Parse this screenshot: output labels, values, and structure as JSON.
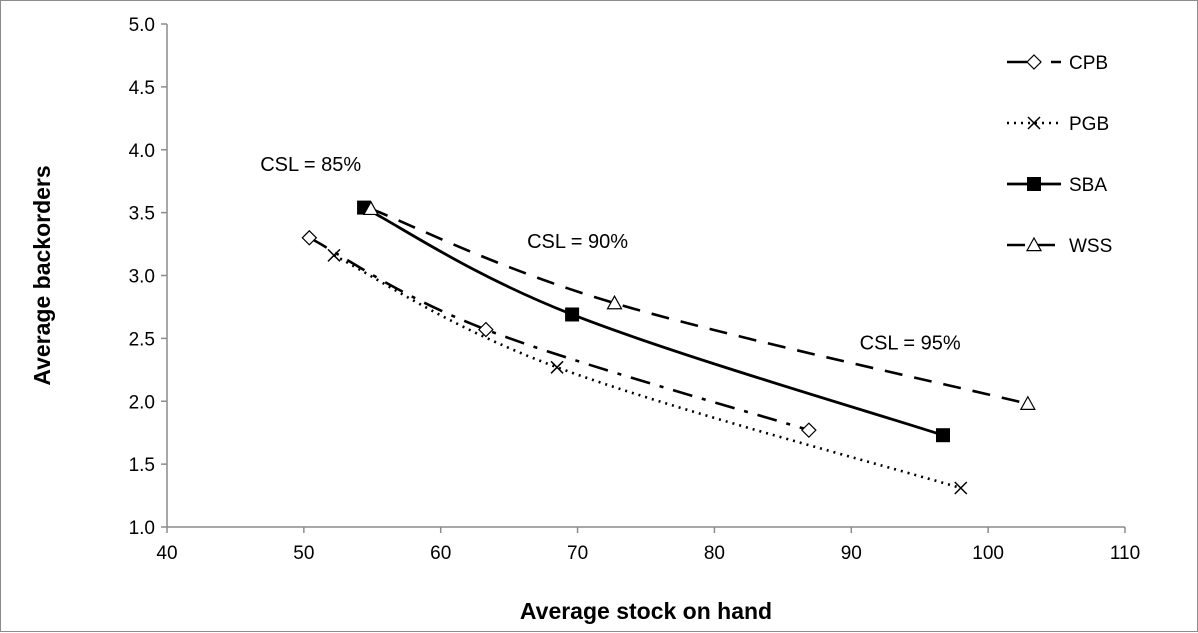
{
  "chart_data": {
    "type": "line",
    "xlabel": "Average stock on hand",
    "ylabel": "Average backorders",
    "xlim": [
      40,
      110
    ],
    "ylim": [
      1.0,
      5.0
    ],
    "x_ticks": [
      "40",
      "50",
      "60",
      "70",
      "80",
      "90",
      "100",
      "110"
    ],
    "y_ticks": [
      "1.0",
      "1.5",
      "2.0",
      "2.5",
      "3.0",
      "3.5",
      "4.0",
      "4.5",
      "5.0"
    ],
    "grid": false,
    "legend_position": "top-right",
    "series": [
      {
        "name": "CPB",
        "marker": "diamond-open",
        "line": "dash-dot",
        "points": [
          [
            50.4,
            3.3
          ],
          [
            63.3,
            2.57
          ],
          [
            86.9,
            1.77
          ]
        ]
      },
      {
        "name": "PGB",
        "marker": "x",
        "line": "dotted",
        "points": [
          [
            52.2,
            3.16
          ],
          [
            68.5,
            2.27
          ],
          [
            98.0,
            1.31
          ]
        ]
      },
      {
        "name": "SBA",
        "marker": "square-filled",
        "line": "solid",
        "points": [
          [
            54.4,
            3.54
          ],
          [
            69.6,
            2.69
          ],
          [
            96.7,
            1.73
          ]
        ]
      },
      {
        "name": "WSS",
        "marker": "triangle-open",
        "line": "long-dash",
        "points": [
          [
            54.9,
            3.53
          ],
          [
            72.7,
            2.78
          ],
          [
            102.9,
            1.98
          ]
        ]
      }
    ],
    "annotations": [
      {
        "text": "CSL = 85%",
        "x": 50.5,
        "y": 3.83
      },
      {
        "text": "CSL = 90%",
        "x": 70.0,
        "y": 3.22
      },
      {
        "text": "CSL = 95%",
        "x": 94.3,
        "y": 2.41
      }
    ]
  }
}
